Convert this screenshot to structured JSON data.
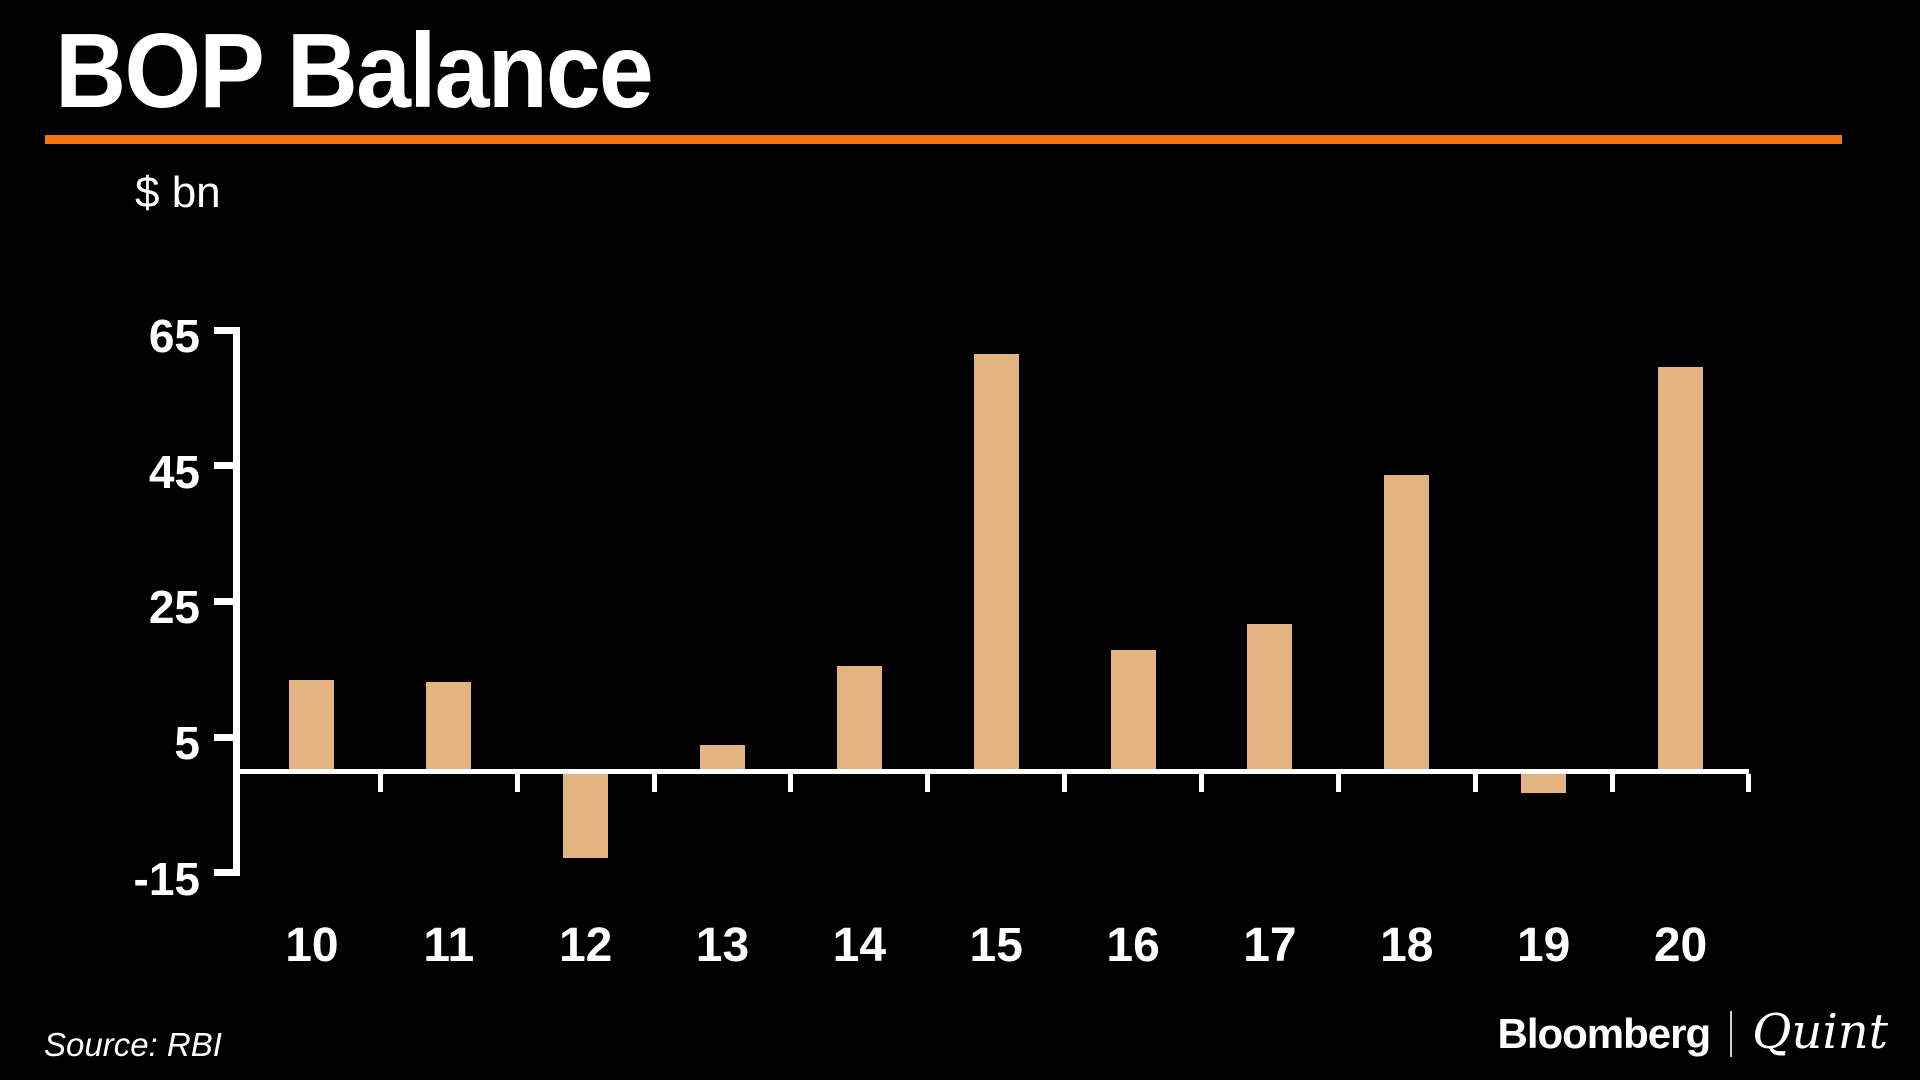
{
  "header": {
    "title": "BOP Balance",
    "unit_label": "$ bn"
  },
  "footer": {
    "source": "Source: RBI",
    "brand_left": "Bloomberg",
    "brand_right": "Quint"
  },
  "colors": {
    "background": "#000000",
    "accent_rule": "#F1770E",
    "bar": "#E2B380",
    "axis": "#FFFFFF",
    "text": "#FFFFFF"
  },
  "chart_data": {
    "type": "bar",
    "title": "BOP Balance",
    "unit": "$ bn",
    "categories": [
      "10",
      "11",
      "12",
      "13",
      "14",
      "15",
      "16",
      "17",
      "18",
      "19",
      "20"
    ],
    "values": [
      13.4,
      13.1,
      -12.8,
      3.8,
      15.5,
      61.4,
      17.9,
      21.6,
      43.6,
      -3.3,
      59.5
    ],
    "y_ticks": [
      65,
      45,
      25,
      5,
      -15
    ],
    "ylim": [
      -15,
      65
    ],
    "xlabel": "",
    "ylabel": "$ bn",
    "grid": false,
    "legend": false,
    "bar_color": "#E2B380"
  }
}
